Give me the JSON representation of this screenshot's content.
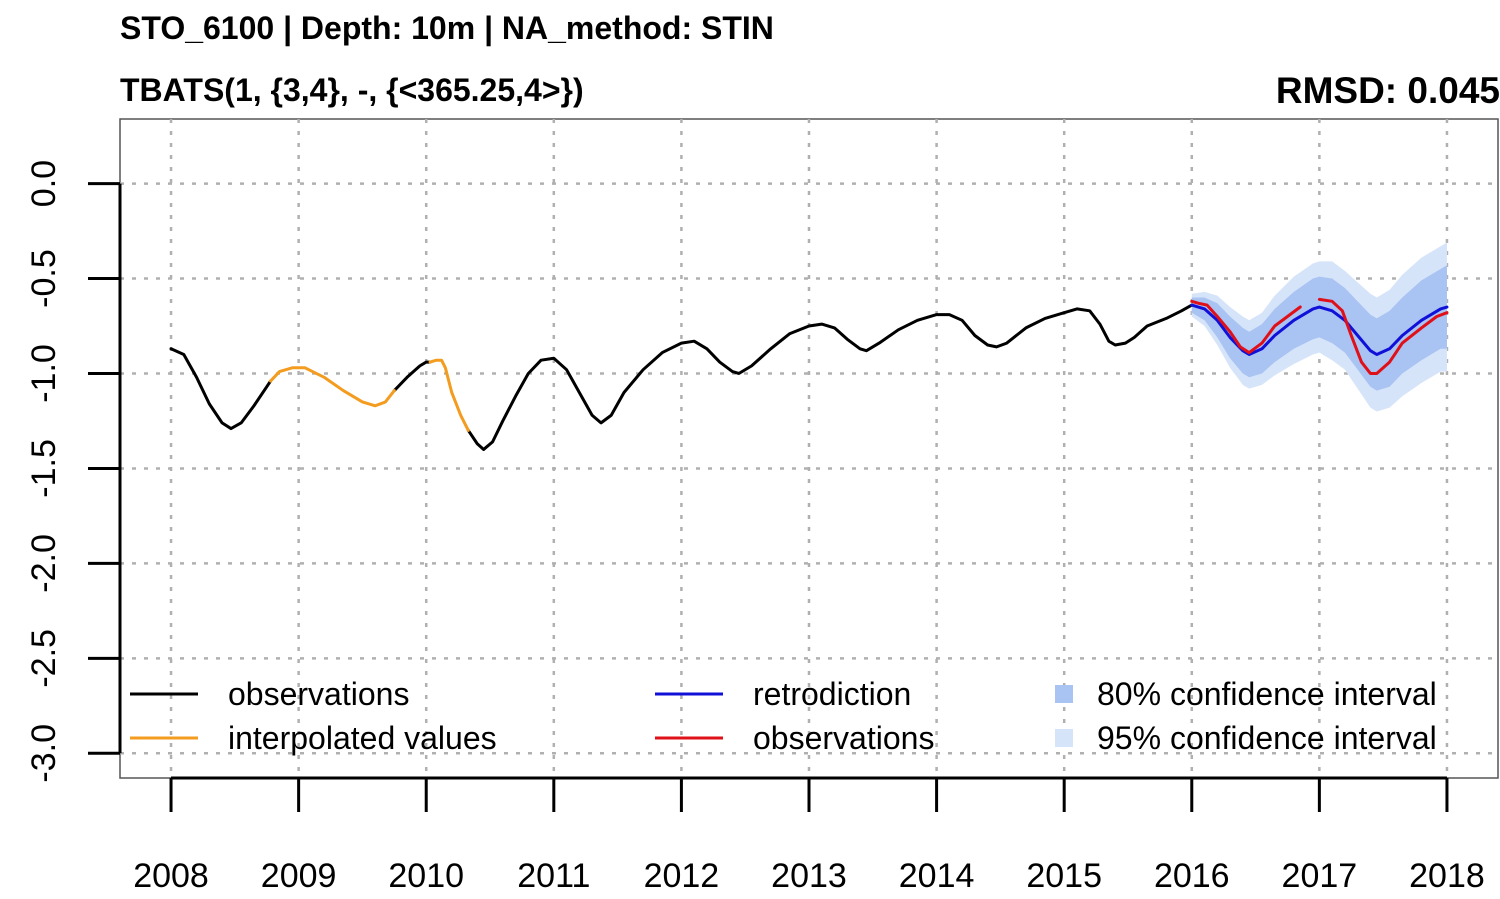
{
  "title": "STO_6100 | Depth: 10m | NA_method: STIN",
  "subtitle": "TBATS(1, {3,4}, -, {<365.25,4>})",
  "rmsd_label": "RMSD: 0.045",
  "colors": {
    "observations": "#000000",
    "interpolated": "#f39c1f",
    "retrodiction": "#1010d8",
    "observations_test": "#e0101a",
    "ci80": "#a9c3f2",
    "ci95": "#d6e4fa",
    "grid": "#b0b0b0"
  },
  "chart_data": {
    "type": "line",
    "xlim": [
      2007.6,
      2018.4
    ],
    "ylim": [
      -3.13,
      0.34
    ],
    "x_ticks": [
      "2008",
      "2009",
      "2010",
      "2011",
      "2012",
      "2013",
      "2014",
      "2015",
      "2016",
      "2017",
      "2018"
    ],
    "y_ticks": [
      "0.0",
      "-0.5",
      "-1.0",
      "-1.5",
      "-2.0",
      "-2.5",
      "-3.0"
    ],
    "grid": true,
    "legend_placement": "bottom",
    "legend": [
      {
        "label": "observations",
        "kind": "line",
        "color_key": "observations"
      },
      {
        "label": "interpolated values",
        "kind": "line",
        "color_key": "interpolated"
      },
      {
        "label": "retrodiction",
        "kind": "line",
        "color_key": "retrodiction"
      },
      {
        "label": "observations",
        "kind": "line",
        "color_key": "observations_test"
      },
      {
        "label": "80% confidence interval",
        "kind": "box",
        "color_key": "ci80"
      },
      {
        "label": "95% confidence interval",
        "kind": "box",
        "color_key": "ci95"
      }
    ],
    "series": [
      {
        "name": "observations",
        "color_key": "observations",
        "segments": [
          [
            [
              2008.0,
              -0.87
            ],
            [
              2008.1,
              -0.9
            ],
            [
              2008.2,
              -1.02
            ],
            [
              2008.3,
              -1.16
            ],
            [
              2008.4,
              -1.26
            ],
            [
              2008.47,
              -1.29
            ],
            [
              2008.55,
              -1.26
            ],
            [
              2008.65,
              -1.17
            ],
            [
              2008.78,
              -1.04
            ]
          ],
          [
            [
              2009.75,
              -1.09
            ],
            [
              2009.85,
              -1.02
            ],
            [
              2009.95,
              -0.96
            ],
            [
              2010.0,
              -0.94
            ],
            [
              2010.03,
              -0.94
            ]
          ],
          [
            [
              2010.33,
              -1.3
            ],
            [
              2010.4,
              -1.37
            ],
            [
              2010.45,
              -1.4
            ],
            [
              2010.52,
              -1.36
            ],
            [
              2010.6,
              -1.25
            ],
            [
              2010.7,
              -1.12
            ],
            [
              2010.8,
              -1.0
            ],
            [
              2010.9,
              -0.93
            ],
            [
              2011.0,
              -0.92
            ],
            [
              2011.1,
              -0.98
            ],
            [
              2011.2,
              -1.1
            ],
            [
              2011.3,
              -1.22
            ],
            [
              2011.37,
              -1.26
            ],
            [
              2011.45,
              -1.22
            ],
            [
              2011.55,
              -1.1
            ],
            [
              2011.7,
              -0.98
            ],
            [
              2011.85,
              -0.89
            ],
            [
              2012.0,
              -0.84
            ],
            [
              2012.1,
              -0.83
            ],
            [
              2012.2,
              -0.87
            ],
            [
              2012.3,
              -0.94
            ],
            [
              2012.4,
              -0.99
            ],
            [
              2012.45,
              -1.0
            ],
            [
              2012.55,
              -0.96
            ],
            [
              2012.7,
              -0.87
            ],
            [
              2012.85,
              -0.79
            ],
            [
              2013.0,
              -0.75
            ],
            [
              2013.1,
              -0.74
            ],
            [
              2013.2,
              -0.76
            ],
            [
              2013.3,
              -0.82
            ],
            [
              2013.4,
              -0.87
            ],
            [
              2013.45,
              -0.88
            ],
            [
              2013.55,
              -0.84
            ],
            [
              2013.7,
              -0.77
            ],
            [
              2013.85,
              -0.72
            ],
            [
              2014.0,
              -0.69
            ],
            [
              2014.1,
              -0.69
            ],
            [
              2014.2,
              -0.72
            ],
            [
              2014.3,
              -0.8
            ],
            [
              2014.4,
              -0.85
            ],
            [
              2014.47,
              -0.86
            ],
            [
              2014.55,
              -0.84
            ],
            [
              2014.7,
              -0.76
            ],
            [
              2014.85,
              -0.71
            ],
            [
              2015.0,
              -0.68
            ],
            [
              2015.1,
              -0.66
            ],
            [
              2015.2,
              -0.67
            ],
            [
              2015.28,
              -0.74
            ],
            [
              2015.35,
              -0.83
            ],
            [
              2015.4,
              -0.85
            ],
            [
              2015.48,
              -0.84
            ],
            [
              2015.55,
              -0.81
            ],
            [
              2015.65,
              -0.75
            ],
            [
              2015.8,
              -0.71
            ],
            [
              2015.92,
              -0.67
            ],
            [
              2016.0,
              -0.64
            ]
          ]
        ]
      },
      {
        "name": "interpolated values",
        "color_key": "interpolated",
        "segments": [
          [
            [
              2008.78,
              -1.04
            ],
            [
              2008.85,
              -0.99
            ],
            [
              2008.95,
              -0.97
            ],
            [
              2009.05,
              -0.97
            ],
            [
              2009.2,
              -1.02
            ],
            [
              2009.35,
              -1.09
            ],
            [
              2009.5,
              -1.15
            ],
            [
              2009.6,
              -1.17
            ],
            [
              2009.68,
              -1.15
            ],
            [
              2009.75,
              -1.09
            ]
          ],
          [
            [
              2010.03,
              -0.94
            ],
            [
              2010.08,
              -0.93
            ],
            [
              2010.12,
              -0.93
            ],
            [
              2010.15,
              -0.97
            ],
            [
              2010.2,
              -1.1
            ],
            [
              2010.27,
              -1.22
            ],
            [
              2010.33,
              -1.3
            ]
          ]
        ]
      },
      {
        "name": "retrodiction",
        "color_key": "retrodiction",
        "segments": [
          [
            [
              2016.0,
              -0.64
            ],
            [
              2016.1,
              -0.66
            ],
            [
              2016.2,
              -0.72
            ],
            [
              2016.3,
              -0.81
            ],
            [
              2016.4,
              -0.88
            ],
            [
              2016.45,
              -0.9
            ],
            [
              2016.55,
              -0.87
            ],
            [
              2016.65,
              -0.8
            ],
            [
              2016.8,
              -0.72
            ],
            [
              2016.95,
              -0.66
            ],
            [
              2017.0,
              -0.65
            ],
            [
              2017.1,
              -0.67
            ],
            [
              2017.2,
              -0.72
            ],
            [
              2017.3,
              -0.8
            ],
            [
              2017.4,
              -0.88
            ],
            [
              2017.45,
              -0.9
            ],
            [
              2017.55,
              -0.87
            ],
            [
              2017.65,
              -0.8
            ],
            [
              2017.8,
              -0.72
            ],
            [
              2017.95,
              -0.66
            ],
            [
              2018.0,
              -0.65
            ]
          ]
        ]
      },
      {
        "name": "observations",
        "color_key": "observations_test",
        "segments": [
          [
            [
              2016.0,
              -0.62
            ],
            [
              2016.05,
              -0.63
            ],
            [
              2016.12,
              -0.64
            ],
            [
              2016.2,
              -0.7
            ],
            [
              2016.3,
              -0.78
            ],
            [
              2016.38,
              -0.86
            ],
            [
              2016.45,
              -0.89
            ],
            [
              2016.55,
              -0.84
            ],
            [
              2016.65,
              -0.75
            ],
            [
              2016.75,
              -0.7
            ],
            [
              2016.85,
              -0.65
            ]
          ],
          [
            [
              2017.0,
              -0.61
            ],
            [
              2017.1,
              -0.62
            ],
            [
              2017.18,
              -0.67
            ],
            [
              2017.25,
              -0.8
            ],
            [
              2017.33,
              -0.94
            ],
            [
              2017.4,
              -1.0
            ],
            [
              2017.45,
              -1.0
            ],
            [
              2017.55,
              -0.94
            ],
            [
              2017.65,
              -0.84
            ],
            [
              2017.8,
              -0.76
            ],
            [
              2017.92,
              -0.7
            ],
            [
              2018.0,
              -0.68
            ]
          ]
        ]
      }
    ],
    "ci80": [
      [
        2016.0,
        -0.6,
        -0.68
      ],
      [
        2016.1,
        -0.6,
        -0.72
      ],
      [
        2016.2,
        -0.63,
        -0.81
      ],
      [
        2016.3,
        -0.7,
        -0.92
      ],
      [
        2016.4,
        -0.76,
        -1.0
      ],
      [
        2016.45,
        -0.78,
        -1.02
      ],
      [
        2016.55,
        -0.74,
        -1.0
      ],
      [
        2016.65,
        -0.66,
        -0.94
      ],
      [
        2016.8,
        -0.57,
        -0.87
      ],
      [
        2016.95,
        -0.5,
        -0.82
      ],
      [
        2017.0,
        -0.49,
        -0.81
      ],
      [
        2017.1,
        -0.5,
        -0.84
      ],
      [
        2017.2,
        -0.55,
        -0.89
      ],
      [
        2017.3,
        -0.62,
        -0.98
      ],
      [
        2017.4,
        -0.69,
        -1.07
      ],
      [
        2017.45,
        -0.71,
        -1.09
      ],
      [
        2017.55,
        -0.67,
        -1.07
      ],
      [
        2017.65,
        -0.6,
        -1.0
      ],
      [
        2017.8,
        -0.51,
        -0.93
      ],
      [
        2017.95,
        -0.45,
        -0.87
      ],
      [
        2018.0,
        -0.43,
        -0.87
      ]
    ],
    "ci95": [
      [
        2016.0,
        -0.58,
        -0.7
      ],
      [
        2016.1,
        -0.57,
        -0.75
      ],
      [
        2016.2,
        -0.59,
        -0.85
      ],
      [
        2016.3,
        -0.65,
        -0.97
      ],
      [
        2016.4,
        -0.7,
        -1.06
      ],
      [
        2016.45,
        -0.72,
        -1.08
      ],
      [
        2016.55,
        -0.68,
        -1.06
      ],
      [
        2016.65,
        -0.59,
        -1.01
      ],
      [
        2016.8,
        -0.49,
        -0.95
      ],
      [
        2016.95,
        -0.42,
        -0.9
      ],
      [
        2017.0,
        -0.41,
        -0.89
      ],
      [
        2017.1,
        -0.41,
        -0.93
      ],
      [
        2017.2,
        -0.46,
        -0.98
      ],
      [
        2017.3,
        -0.52,
        -1.08
      ],
      [
        2017.4,
        -0.58,
        -1.18
      ],
      [
        2017.45,
        -0.6,
        -1.2
      ],
      [
        2017.55,
        -0.56,
        -1.18
      ],
      [
        2017.65,
        -0.48,
        -1.12
      ],
      [
        2017.8,
        -0.39,
        -1.05
      ],
      [
        2017.95,
        -0.33,
        -0.99
      ],
      [
        2018.0,
        -0.31,
        -0.99
      ]
    ]
  }
}
